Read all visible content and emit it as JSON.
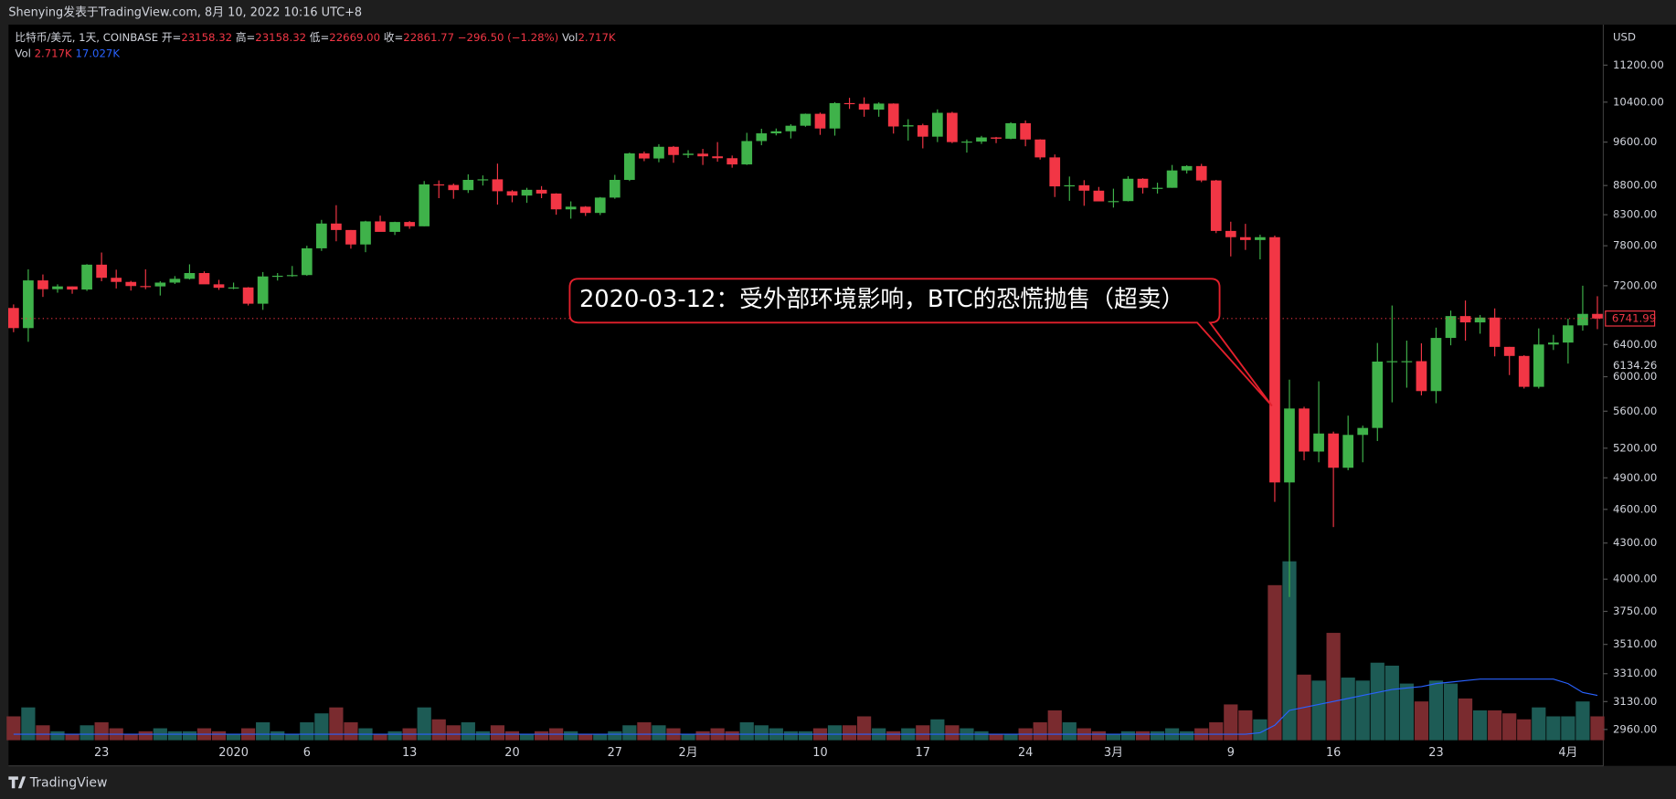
{
  "chart_data": {
    "type": "candlestick",
    "header": "Shenying发表于TradingView.com, 8月 10, 2022 10:16 UTC+8",
    "legend": {
      "symbol": "比特币/美元, 1天, COINBASE",
      "open_label": "开=",
      "open": "23158.32",
      "high_label": "高=",
      "high": "23158.32",
      "low_label": "低=",
      "low": "22669.00",
      "close_label": "收=",
      "close": "22861.77",
      "change": "−296.50 (−1.28%)",
      "vol_label": "Vol",
      "vol": "2.717K"
    },
    "volume_legend": {
      "label": "Vol",
      "value": "2.717K",
      "ma": "17.027K"
    },
    "currency": "USD",
    "brand": "TradingView",
    "annotation": "2020-03-12：受外部环境影响，BTC的恐慌抛售（超卖）",
    "categories": [
      null,
      null,
      null,
      null,
      null,
      null,
      "23",
      null,
      null,
      null,
      null,
      null,
      null,
      null,
      null,
      "2020",
      null,
      null,
      null,
      null,
      "6",
      null,
      null,
      null,
      null,
      null,
      null,
      "13",
      null,
      null,
      null,
      null,
      null,
      null,
      "20",
      null,
      null,
      null,
      null,
      null,
      null,
      "27",
      null,
      null,
      null,
      null,
      "2月",
      null,
      null,
      null,
      null,
      null,
      null,
      null,
      null,
      "10",
      null,
      null,
      null,
      null,
      null,
      null,
      "17",
      null,
      null,
      null,
      null,
      null,
      null,
      "24",
      null,
      null,
      null,
      null,
      null,
      "3月",
      null,
      null,
      null,
      null,
      null,
      null,
      null,
      "9",
      null,
      null,
      null,
      null,
      null,
      null,
      "16",
      null,
      null,
      null,
      null,
      null,
      null,
      "23",
      null,
      null,
      null,
      null,
      null,
      null,
      null,
      null,
      "4月",
      null,
      null
    ],
    "open": [
      6886,
      6614,
      7277,
      7150,
      7190,
      7145,
      7510,
      7315,
      7255,
      7195,
      7190,
      7245,
      7300,
      7385,
      7220,
      7170,
      7175,
      6945,
      7335,
      7345,
      7355,
      7760,
      8155,
      8050,
      7820,
      8190,
      8020,
      8180,
      8110,
      8820,
      8810,
      8720,
      8900,
      8910,
      8700,
      8625,
      8725,
      8660,
      8390,
      8435,
      8330,
      8590,
      8900,
      9385,
      9290,
      9510,
      9355,
      9380,
      9330,
      9295,
      9180,
      9620,
      9770,
      9810,
      9920,
      10160,
      9865,
      10380,
      10365,
      10245,
      10370,
      9905,
      9930,
      9705,
      10180,
      9600,
      9610,
      9690,
      9665,
      9970,
      9650,
      9310,
      8785,
      8805,
      8710,
      8525,
      8530,
      8920,
      8760,
      8760,
      9070,
      9150,
      8890,
      8035,
      7935,
      7890,
      7935,
      4855,
      5630,
      5165,
      5355,
      5000,
      5340,
      5415,
      6185,
      6190,
      6190,
      5830,
      6485,
      6775,
      6690,
      6755,
      6370,
      6255,
      5880,
      6400,
      6425,
      6650,
      6805
    ],
    "high": [
      6935,
      7440,
      7364,
      7220,
      7190,
      7518,
      7695,
      7435,
      7270,
      7440,
      7265,
      7340,
      7515,
      7410,
      7285,
      7245,
      7180,
      7400,
      7385,
      7490,
      7800,
      8215,
      8460,
      8050,
      8200,
      8285,
      8185,
      8195,
      8880,
      8890,
      8835,
      9000,
      8980,
      9195,
      8720,
      8760,
      8790,
      8665,
      8525,
      8445,
      8600,
      8990,
      9400,
      9420,
      9560,
      9525,
      9445,
      9470,
      9600,
      9345,
      9780,
      9860,
      9865,
      9950,
      10165,
      10185,
      10400,
      10490,
      10500,
      10395,
      10375,
      10050,
      9960,
      10250,
      10200,
      9650,
      9720,
      9700,
      9990,
      10025,
      9655,
      9365,
      8960,
      8895,
      8775,
      8745,
      8965,
      8930,
      8850,
      9170,
      9165,
      9190,
      8900,
      8185,
      8150,
      7975,
      7960,
      5965,
      5650,
      5945,
      5375,
      5550,
      5440,
      6420,
      6920,
      6450,
      6415,
      6620,
      6850,
      6990,
      6790,
      6880,
      6370,
      6265,
      6610,
      6525,
      6740,
      7200,
      7050
    ],
    "low": [
      6560,
      6435,
      7040,
      7100,
      7085,
      7125,
      7265,
      7160,
      7130,
      7150,
      7060,
      7225,
      7290,
      7225,
      7140,
      7150,
      6920,
      6860,
      7275,
      7330,
      7345,
      7720,
      7870,
      7755,
      7700,
      8030,
      7970,
      8070,
      8110,
      8580,
      8570,
      8670,
      8800,
      8470,
      8510,
      8500,
      8580,
      8300,
      8235,
      8280,
      8295,
      8570,
      8880,
      9240,
      9220,
      9210,
      9300,
      9170,
      9230,
      9120,
      9170,
      9540,
      9730,
      9670,
      9900,
      9740,
      9725,
      10260,
      10100,
      10100,
      9765,
      9630,
      9480,
      9600,
      9580,
      9400,
      9565,
      9580,
      9655,
      9520,
      9270,
      8600,
      8535,
      8450,
      8530,
      8420,
      8525,
      8660,
      8660,
      8760,
      9015,
      8860,
      8000,
      7635,
      7735,
      7590,
      4670,
      3860,
      5075,
      5055,
      4440,
      4975,
      5055,
      5275,
      5700,
      5870,
      5780,
      5690,
      6390,
      6450,
      6540,
      6250,
      6020,
      5860,
      5860,
      6330,
      6160,
      6580,
      6600
    ],
    "close": [
      6614,
      7277,
      7150,
      7190,
      7145,
      7510,
      7315,
      7255,
      7195,
      7190,
      7245,
      7300,
      7385,
      7220,
      7170,
      7175,
      6945,
      7335,
      7345,
      7355,
      7760,
      8155,
      8050,
      7820,
      8190,
      8020,
      8180,
      8110,
      8820,
      8810,
      8720,
      8900,
      8910,
      8700,
      8625,
      8725,
      8660,
      8390,
      8435,
      8330,
      8590,
      8900,
      9385,
      9290,
      9510,
      9355,
      9380,
      9330,
      9295,
      9180,
      9620,
      9770,
      9810,
      9920,
      10160,
      9865,
      10380,
      10365,
      10245,
      10370,
      9905,
      9930,
      9705,
      10180,
      9600,
      9610,
      9690,
      9665,
      9970,
      9650,
      9310,
      8785,
      8805,
      8710,
      8525,
      8530,
      8920,
      8760,
      8760,
      9070,
      9150,
      8890,
      8035,
      7935,
      7890,
      7935,
      4855,
      5630,
      5165,
      5355,
      5000,
      5340,
      5415,
      6185,
      6190,
      6190,
      5830,
      6485,
      6775,
      6690,
      6755,
      6370,
      6255,
      5880,
      6400,
      6425,
      6650,
      6805,
      6742
    ],
    "volume": [
      8,
      11,
      5,
      3,
      2,
      5,
      6,
      4,
      2,
      3,
      4,
      3,
      3,
      4,
      3,
      2,
      4,
      6,
      3,
      2,
      6,
      9,
      11,
      6,
      4,
      2,
      3,
      4,
      11,
      7,
      5,
      6,
      3,
      5,
      3,
      2,
      3,
      4,
      3,
      2,
      2,
      3,
      5,
      6,
      5,
      4,
      2,
      3,
      4,
      3,
      6,
      5,
      4,
      3,
      3,
      4,
      5,
      5,
      8,
      4,
      3,
      4,
      5,
      7,
      5,
      4,
      3,
      2,
      2,
      4,
      6,
      10,
      6,
      4,
      3,
      2,
      3,
      3,
      3,
      4,
      3,
      4,
      6,
      12,
      10,
      7,
      52,
      60,
      22,
      20,
      36,
      21,
      20,
      26,
      25,
      19,
      13,
      20,
      19,
      14,
      10,
      10,
      9,
      7,
      11,
      8,
      8,
      13,
      8
    ],
    "volume_ma": [
      2,
      2,
      2,
      2,
      2,
      2,
      2,
      2,
      2,
      2,
      2,
      2,
      2,
      2,
      2,
      2,
      2,
      2,
      2,
      2,
      2,
      2,
      2,
      2,
      2,
      2,
      2,
      2,
      2,
      2,
      2,
      2,
      2,
      2,
      2,
      2,
      2,
      2,
      2,
      2,
      2,
      2,
      2,
      2,
      2,
      2,
      2,
      2,
      2,
      2,
      2,
      2,
      2,
      2,
      2,
      2,
      2,
      2,
      2,
      2,
      2,
      2,
      2,
      2,
      2,
      2,
      2,
      2,
      2,
      2,
      2,
      2,
      2,
      2,
      2,
      2,
      2,
      2,
      2,
      2,
      2,
      2,
      2,
      2,
      2,
      2.5,
      5,
      10,
      11,
      12,
      13,
      14,
      15,
      16,
      17,
      17.5,
      18,
      19,
      19.5,
      20,
      20.5,
      20.5,
      20.5,
      20.5,
      20.5,
      20.5,
      19,
      16,
      15
    ],
    "ylim": [
      2897,
      12147
    ],
    "log": true,
    "vlim": [
      0,
      240
    ],
    "yticks": [
      {
        "value": 11200,
        "label": "11200.00"
      },
      {
        "value": 10400,
        "label": "10400.00"
      },
      {
        "value": 9600,
        "label": "9600.00"
      },
      {
        "value": 8800,
        "label": "8800.00"
      },
      {
        "value": 8300,
        "label": "8300.00"
      },
      {
        "value": 7800,
        "label": "7800.00"
      },
      {
        "value": 7200,
        "label": "7200.00"
      },
      {
        "value": 6400,
        "label": "6400.00"
      },
      {
        "value": 6000,
        "label": "6000.00"
      },
      {
        "value": 5600,
        "label": "5600.00"
      },
      {
        "value": 5200,
        "label": "5200.00"
      },
      {
        "value": 4900,
        "label": "4900.00"
      },
      {
        "value": 4600,
        "label": "4600.00"
      },
      {
        "value": 4300,
        "label": "4300.00"
      },
      {
        "value": 4000,
        "label": "4000.00"
      },
      {
        "value": 3750,
        "label": "3750.00"
      },
      {
        "value": 3510,
        "label": "3510.00"
      },
      {
        "value": 3310,
        "label": "3310.00"
      },
      {
        "value": 3130,
        "label": "3130.00"
      },
      {
        "value": 2960,
        "label": "2960.00"
      }
    ],
    "last_price": {
      "value": 6741.99,
      "label": "6741.99"
    },
    "cursor_price": {
      "value": 6134.26,
      "label": "6134.26"
    },
    "up_color": "#3fb24a",
    "down_color": "#f23645",
    "volume_up_color": "#1d5b55",
    "volume_down_color": "#7a2b2f",
    "volume_ma_color": "#2962ff"
  }
}
